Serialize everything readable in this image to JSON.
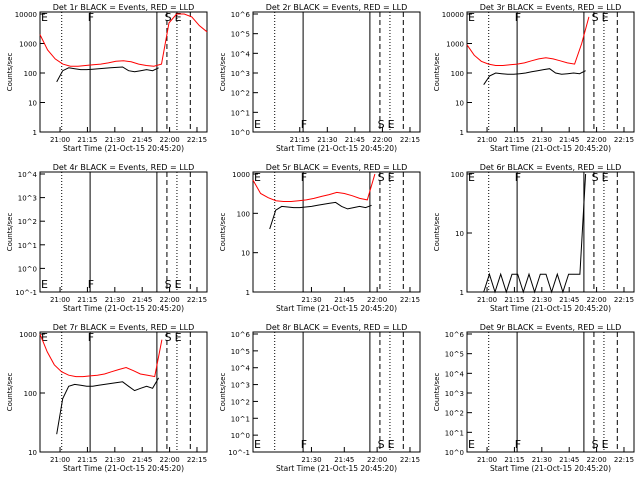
{
  "chart_data": [
    {
      "type": "line",
      "title": "Det 1r BLACK = Events, RED = LLD",
      "ylabel": "Counts/sec",
      "xlabel": "Start Time (21-Oct-15 20:45:20)",
      "x_ticks": [
        "21:00",
        "21:15",
        "21:30",
        "21:45",
        "22:00",
        "22:15"
      ],
      "y_ticks": [
        "1",
        "10",
        "100",
        "1000",
        "10000"
      ],
      "markers": [
        "E",
        "F",
        "S",
        "E"
      ],
      "series": [
        {
          "color": "#ff0000",
          "y": [
            2000,
            600,
            300,
            200,
            170,
            170,
            180,
            190,
            200,
            220,
            250,
            260,
            240,
            200,
            180,
            170,
            200,
            5000,
            12000,
            12000,
            8000,
            4000,
            2500
          ]
        },
        {
          "color": "#000000",
          "y": [
            50,
            120,
            150,
            140,
            130,
            130,
            135,
            140,
            145,
            150,
            155,
            160,
            120,
            110,
            120,
            130,
            120,
            150
          ]
        }
      ]
    },
    {
      "type": "line",
      "title": "Det 2r BLACK = Events, RED = LLD",
      "ylabel": "Counts/sec",
      "xlabel": "Start Time (21-Oct-15 20:45:20)",
      "x_ticks": [
        "21:15",
        "21:30",
        "21:45",
        "22:00",
        "22:15"
      ],
      "y_ticks": [
        "10^0",
        "10^1",
        "10^2",
        "10^3",
        "10^4",
        "10^5",
        "10^6"
      ],
      "markers": [
        "E",
        "F",
        "S",
        "E"
      ],
      "series": []
    },
    {
      "type": "line",
      "title": "Det 3r BLACK = Events, RED = LLD",
      "ylabel": "Counts/sec",
      "xlabel": "Start Time (21-Oct-15 20:45:20)",
      "x_ticks": [
        "21:00",
        "21:15",
        "21:30",
        "21:45",
        "22:00",
        "22:15"
      ],
      "y_ticks": [
        "1",
        "10",
        "100",
        "1000",
        "10000"
      ],
      "markers": [
        "E",
        "F",
        "S",
        "E"
      ],
      "series": [
        {
          "color": "#ff0000",
          "y": [
            900,
            400,
            250,
            200,
            180,
            180,
            190,
            200,
            220,
            260,
            300,
            330,
            300,
            260,
            220,
            200,
            1000,
            8000
          ]
        },
        {
          "color": "#000000",
          "y": [
            40,
            80,
            100,
            95,
            90,
            90,
            95,
            100,
            110,
            120,
            130,
            140,
            100,
            90,
            95,
            100,
            95,
            120
          ]
        }
      ]
    },
    {
      "type": "line",
      "title": "Det 4r BLACK = Events, RED = LLD",
      "ylabel": "Counts/sec",
      "xlabel": "Start Time (21-Oct-15 20:45:20)",
      "x_ticks": [
        "21:00",
        "21:15",
        "21:30",
        "21:45",
        "22:00",
        "22:15"
      ],
      "y_ticks": [
        "10^-1",
        "10^0",
        "10^1",
        "10^2",
        "10^3",
        "10^4"
      ],
      "markers": [
        "E",
        "F",
        "S",
        "E"
      ],
      "series": []
    },
    {
      "type": "line",
      "title": "Det 5r BLACK = Events, RED = LLD",
      "ylabel": "Counts/sec",
      "xlabel": "Start Time (21-Oct-15 20:45:20)",
      "x_ticks": [
        "21:30",
        "21:45",
        "22:00",
        "22:15"
      ],
      "y_ticks": [
        "1",
        "10",
        "100",
        "1000"
      ],
      "markers": [
        "E",
        "F",
        "S",
        "E"
      ],
      "series": [
        {
          "color": "#ff0000",
          "y": [
            700,
            320,
            250,
            210,
            200,
            200,
            210,
            220,
            240,
            270,
            300,
            340,
            320,
            280,
            240,
            220,
            1000
          ]
        },
        {
          "color": "#000000",
          "y": [
            40,
            120,
            150,
            145,
            140,
            140,
            145,
            150,
            160,
            170,
            180,
            190,
            150,
            130,
            140,
            150,
            140,
            160
          ]
        }
      ]
    },
    {
      "type": "line",
      "title": "Det 6r BLACK = Events, RED = LLD",
      "ylabel": "Counts/sec",
      "xlabel": "Start Time (21-Oct-15 20:45:20)",
      "x_ticks": [
        "21:00",
        "21:15",
        "21:30",
        "21:45",
        "22:00",
        "22:15"
      ],
      "y_ticks": [
        "1",
        "10",
        "100"
      ],
      "markers": [
        "E",
        "F",
        "S",
        "E"
      ],
      "series": [
        {
          "color": "#000000",
          "y": [
            1,
            2,
            1,
            2,
            1,
            2,
            2,
            1,
            2,
            1,
            2,
            2,
            1,
            2,
            1,
            2,
            2,
            2,
            100
          ]
        }
      ]
    },
    {
      "type": "line",
      "title": "Det 7r BLACK = Events, RED = LLD",
      "ylabel": "Counts/sec",
      "xlabel": "Start Time (21-Oct-15 20:45:20)",
      "x_ticks": [
        "21:00",
        "21:15",
        "21:30",
        "21:45",
        "22:00",
        "22:15"
      ],
      "y_ticks": [
        "10",
        "100",
        "1000"
      ],
      "markers": [
        "E",
        "F",
        "S",
        "E"
      ],
      "series": [
        {
          "color": "#ff0000",
          "y": [
            1000,
            500,
            300,
            230,
            200,
            190,
            190,
            195,
            200,
            210,
            230,
            250,
            270,
            240,
            210,
            200,
            190,
            800
          ]
        },
        {
          "color": "#000000",
          "y": [
            20,
            80,
            130,
            140,
            135,
            130,
            130,
            135,
            140,
            145,
            150,
            155,
            130,
            110,
            120,
            130,
            120,
            180
          ]
        }
      ]
    },
    {
      "type": "line",
      "title": "Det 8r BLACK = Events, RED = LLD",
      "ylabel": "Counts/sec",
      "xlabel": "Start Time (21-Oct-15 20:45:20)",
      "x_ticks": [
        "21:30",
        "21:45",
        "22:00",
        "22:15"
      ],
      "y_ticks": [
        "10^-1",
        "10^0",
        "10^1",
        "10^2",
        "10^3",
        "10^4",
        "10^5",
        "10^6"
      ],
      "markers": [
        "E",
        "F",
        "S",
        "E"
      ],
      "series": []
    },
    {
      "type": "line",
      "title": "Det 9r BLACK = Events, RED = LLD",
      "ylabel": "Counts/sec",
      "xlabel": "Start Time (21-Oct-15 20:45:20)",
      "x_ticks": [
        "21:00",
        "21:15",
        "21:30",
        "21:45",
        "22:00",
        "22:15"
      ],
      "y_ticks": [
        "10^0",
        "10^1",
        "10^2",
        "10^3",
        "10^4",
        "10^5",
        "10^6"
      ],
      "markers": [
        "E",
        "F",
        "S",
        "E"
      ],
      "series": []
    }
  ]
}
